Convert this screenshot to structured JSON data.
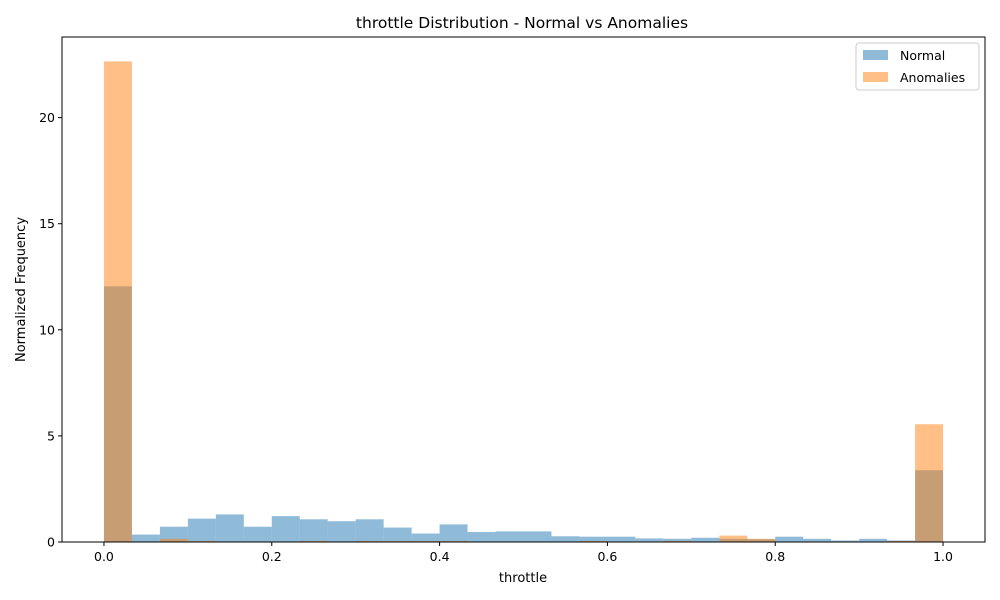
{
  "chart_data": {
    "type": "bar",
    "title": "throttle Distribution - Normal vs Anomalies",
    "xlabel": "throttle",
    "ylabel": "Normalized Frequency",
    "xlim": [
      -0.05,
      1.05
    ],
    "ylim": [
      0,
      23.8
    ],
    "xticks": [
      0.0,
      0.2,
      0.4,
      0.6,
      0.8,
      1.0
    ],
    "xtick_labels": [
      "0.0",
      "0.2",
      "0.4",
      "0.6",
      "0.8",
      "1.0"
    ],
    "yticks": [
      0,
      5,
      10,
      15,
      20
    ],
    "ytick_labels": [
      "0",
      "5",
      "10",
      "15",
      "20"
    ],
    "bins": 30,
    "bin_range": [
      0,
      1
    ],
    "grid": false,
    "legend_position": "top-right",
    "series": [
      {
        "name": "Normal",
        "color": "#1f77b4",
        "alpha": 0.5,
        "values": [
          12.05,
          0.35,
          0.72,
          1.1,
          1.3,
          0.72,
          1.22,
          1.07,
          0.98,
          1.07,
          0.68,
          0.4,
          0.83,
          0.47,
          0.5,
          0.5,
          0.27,
          0.25,
          0.25,
          0.17,
          0.15,
          0.2,
          0.15,
          0.13,
          0.25,
          0.15,
          0.07,
          0.15,
          0.07,
          3.38
        ]
      },
      {
        "name": "Anomalies",
        "color": "#ff7f0e",
        "alpha": 0.5,
        "values": [
          22.65,
          0.0,
          0.15,
          0.05,
          0.0,
          0.0,
          0.0,
          0.05,
          0.0,
          0.05,
          0.05,
          0.05,
          0.05,
          0.0,
          0.0,
          0.0,
          0.0,
          0.05,
          0.0,
          0.0,
          0.05,
          0.0,
          0.3,
          0.15,
          0.0,
          0.0,
          0.0,
          0.0,
          0.05,
          5.55
        ]
      }
    ]
  }
}
